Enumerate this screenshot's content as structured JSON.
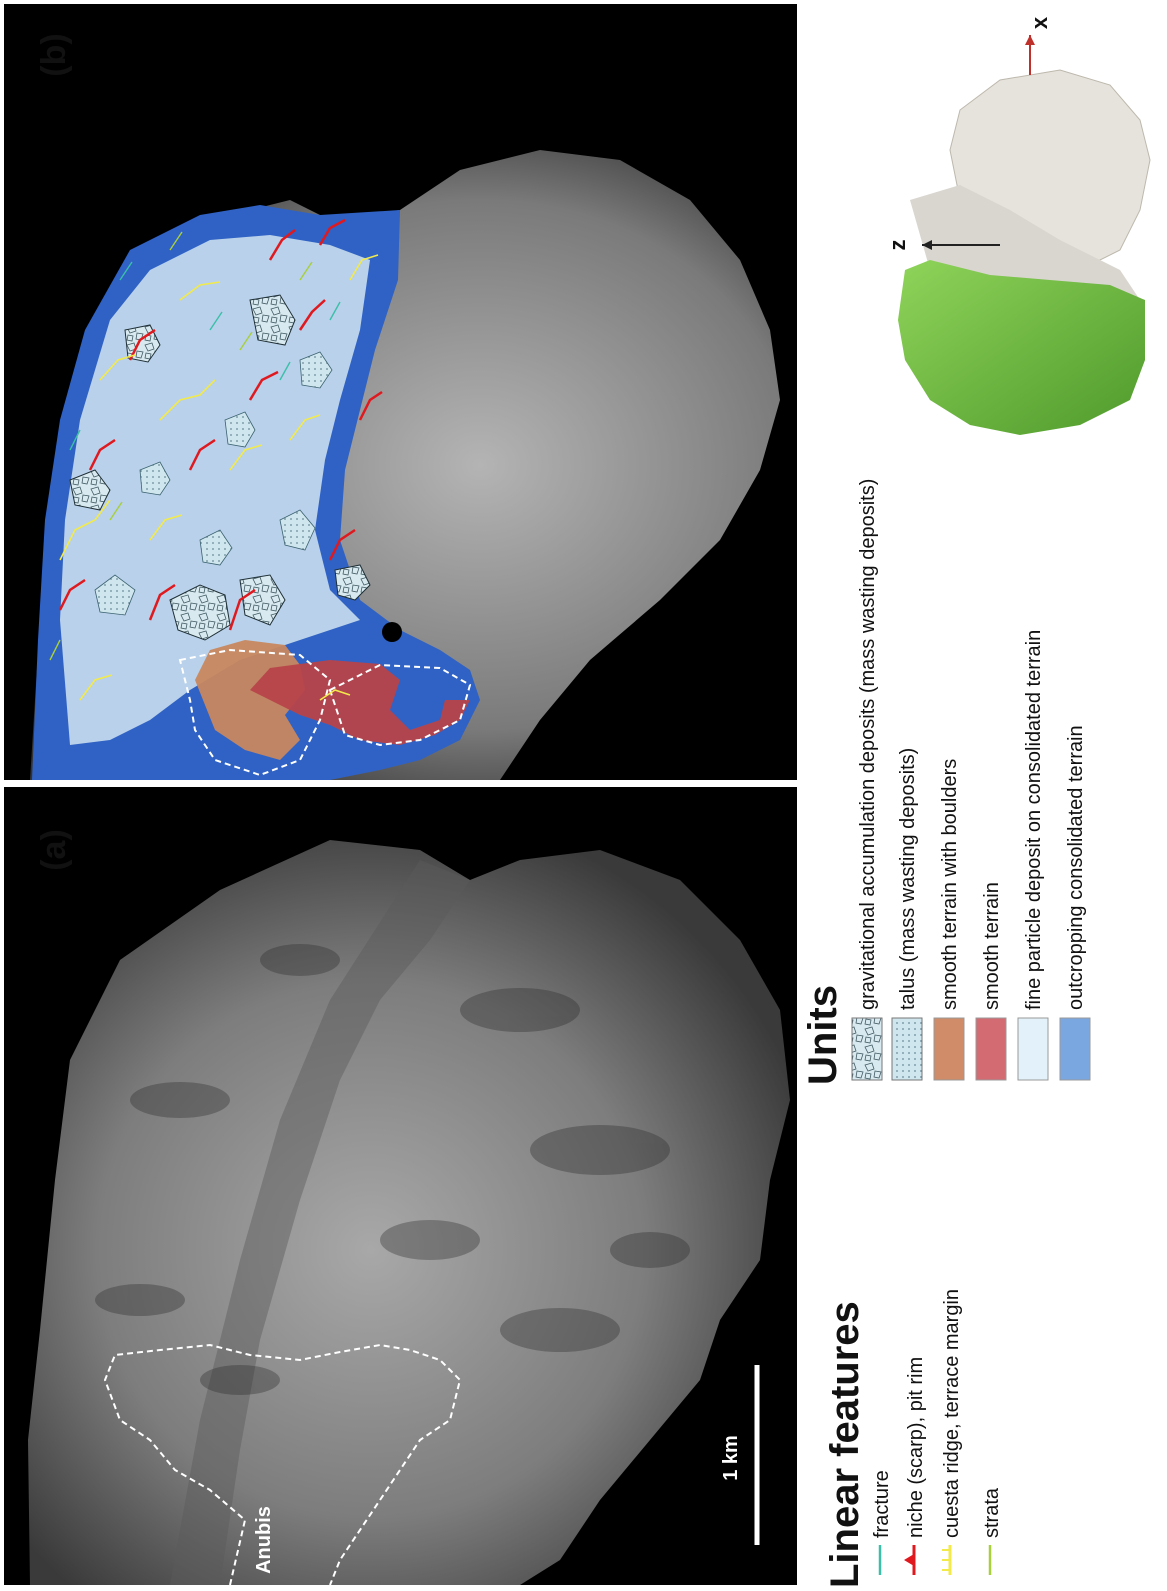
{
  "panels": {
    "a": {
      "label": "(a)",
      "region_label": "Anubis",
      "scale_bar_label": "1 km"
    },
    "b": {
      "label": "(b)"
    }
  },
  "legend": {
    "linear_features": {
      "title": "Linear features",
      "items": [
        {
          "label": "fracture",
          "color": "#3bbfa8",
          "icon": "line-icon"
        },
        {
          "label": "niche (scarp), pit rim",
          "color": "#e0191f",
          "icon": "toothed-line-icon"
        },
        {
          "label": "cuesta ridge, terrace margin",
          "color": "#f2ea4a",
          "icon": "ticked-line-icon"
        },
        {
          "label": "strata",
          "color": "#a8cf3c",
          "icon": "line-icon"
        }
      ]
    },
    "units": {
      "title": "Units",
      "items": [
        {
          "label": "gravitational accumulation deposits (mass wasting deposits)",
          "color": "#d8eaf0",
          "pattern": "blocks"
        },
        {
          "label": "talus (mass wasting deposits)",
          "color": "#cfe6ee",
          "pattern": "dots"
        },
        {
          "label": "smooth terrain with boulders",
          "color": "#d08c68",
          "pattern": "none"
        },
        {
          "label": "smooth terrain",
          "color": "#d36b73",
          "pattern": "none"
        },
        {
          "label": "fine particle deposit on consolidated terrain",
          "color": "#e3f2fa",
          "pattern": "none"
        },
        {
          "label": "outcropping consolidated terrain",
          "color": "#7aa7e0",
          "pattern": "none"
        }
      ]
    }
  },
  "model": {
    "axis_x": "x",
    "axis_z": "z",
    "highlight_color": "#74c043"
  },
  "colors": {
    "background": "#000000",
    "outcrop": "#2f62c4",
    "fine": "#b9d1ea"
  }
}
